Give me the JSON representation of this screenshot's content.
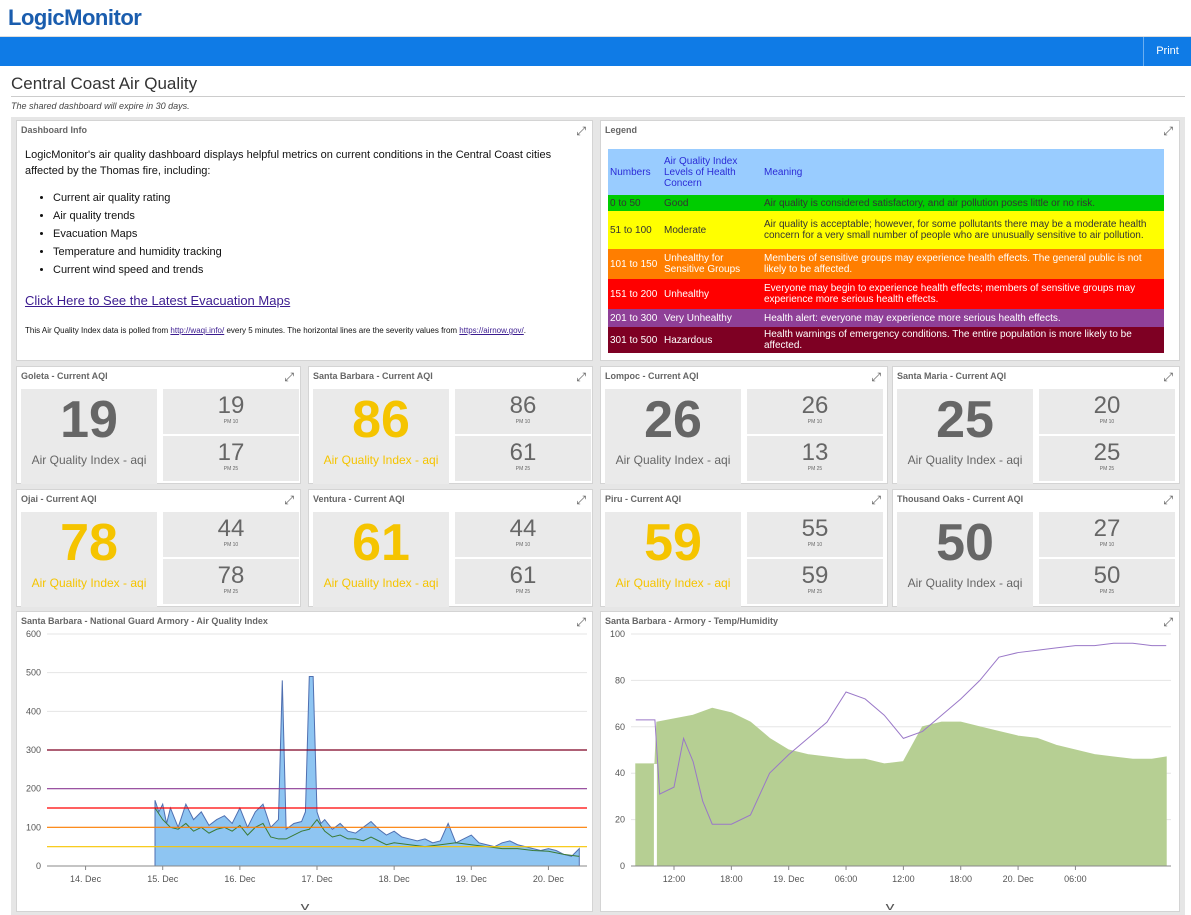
{
  "app": {
    "logo_part1": "Logic",
    "logo_part2": "Monitor",
    "print": "Print"
  },
  "page": {
    "title": "Central Coast Air Quality",
    "subtitle": "The shared dashboard will expire in 30 days."
  },
  "info": {
    "title": "Dashboard Info",
    "intro": "LogicMonitor's air quality dashboard displays helpful metrics on current conditions in the Central Coast cities affected by the Thomas fire, including:",
    "items": [
      "Current air quality rating",
      "Air quality trends",
      "Evacuation Maps",
      "Temperature and humidity tracking",
      "Current wind speed and trends"
    ],
    "link": "Click Here to See the Latest Evacuation Maps",
    "note1": "This Air Quality Index data is polled from ",
    "link1": "http://waqi.info/",
    "note2": " every 5 minutes.  The horizontal lines are the severity values from ",
    "link2": "https://airnow.gov/",
    "note3": "."
  },
  "legend": {
    "title": "Legend",
    "header": [
      "Numbers",
      "Air Quality Index Levels of Health Concern",
      "Meaning"
    ],
    "rows": [
      {
        "n": "0 to 50",
        "level": "Good",
        "meaning": "Air quality is considered satisfactory, and air pollution poses little or no risk.",
        "bg": "#00cc00",
        "fg": "#333333"
      },
      {
        "n": "51 to 100",
        "level": "Moderate",
        "meaning": "Air quality is acceptable; however, for some pollutants there may be a moderate health concern for a very small number of people who are unusually sensitive to air pollution.",
        "bg": "#ffff00",
        "fg": "#333333"
      },
      {
        "n": "101 to 150",
        "level": "Unhealthy for Sensitive Groups",
        "meaning": "Members of sensitive groups may experience health effects. The general public is not likely to be affected.",
        "bg": "#ff7e00",
        "fg": "#ffffff"
      },
      {
        "n": "151 to 200",
        "level": "Unhealthy",
        "meaning": "Everyone may begin to experience health effects; members of sensitive groups may experience more serious health effects.",
        "bg": "#ff0000",
        "fg": "#ffffff"
      },
      {
        "n": "201 to 300",
        "level": "Very Unhealthy",
        "meaning": "Health alert: everyone may experience more serious health effects.",
        "bg": "#8f3f97",
        "fg": "#ffffff"
      },
      {
        "n": "301 to 500",
        "level": "Hazardous",
        "meaning": "Health warnings of emergency conditions. The entire population is more likely to be affected.",
        "bg": "#7e0023",
        "fg": "#ffffff"
      }
    ]
  },
  "aqi_label": "Air Quality Index - aqi",
  "pm10": "PM 10",
  "pm25": "PM 25",
  "stations": [
    {
      "title": "Goleta - Current AQI",
      "aqi": "19",
      "pm10": "19",
      "pm25": "17",
      "color": "gray"
    },
    {
      "title": "Santa Barbara - Current AQI",
      "aqi": "86",
      "pm10": "86",
      "pm25": "61",
      "color": "yellow"
    },
    {
      "title": "Lompoc - Current AQI",
      "aqi": "26",
      "pm10": "26",
      "pm25": "13",
      "color": "gray"
    },
    {
      "title": "Santa Maria - Current AQI",
      "aqi": "25",
      "pm10": "20",
      "pm25": "25",
      "color": "gray"
    },
    {
      "title": "Ojai - Current AQI",
      "aqi": "78",
      "pm10": "44",
      "pm25": "78",
      "color": "yellow"
    },
    {
      "title": "Ventura - Current AQI",
      "aqi": "61",
      "pm10": "44",
      "pm25": "61",
      "color": "yellow"
    },
    {
      "title": "Piru - Current AQI",
      "aqi": "59",
      "pm10": "55",
      "pm25": "59",
      "color": "yellow"
    },
    {
      "title": "Thousand Oaks - Current AQI",
      "aqi": "50",
      "pm10": "27",
      "pm25": "50",
      "color": "gray"
    }
  ],
  "chart_data": [
    {
      "type": "area",
      "title": "Santa Barbara - National Guard Armory - Air Quality Index",
      "ylim": [
        0,
        600
      ],
      "yticks": [
        0,
        100,
        200,
        300,
        400,
        500,
        600
      ],
      "xticks": [
        "14. Dec",
        "15. Dec",
        "16. Dec",
        "17. Dec",
        "18. Dec",
        "19. Dec",
        "20. Dec"
      ],
      "thresholds": [
        {
          "value": 50,
          "color": "#f7c500"
        },
        {
          "value": 100,
          "color": "#ff7e00"
        },
        {
          "value": 150,
          "color": "#ff0000"
        },
        {
          "value": 200,
          "color": "#8f3f97"
        },
        {
          "value": 300,
          "color": "#7e0023"
        }
      ],
      "series": [
        {
          "fill": "#8ec5f2",
          "stroke": "#4f6fb0",
          "x": [
            14.9,
            14.95,
            15.0,
            15.05,
            15.1,
            15.2,
            15.3,
            15.4,
            15.5,
            15.6,
            15.7,
            15.8,
            15.9,
            16.0,
            16.1,
            16.2,
            16.3,
            16.4,
            16.5,
            16.55,
            16.6,
            16.7,
            16.8,
            16.85,
            16.9,
            16.95,
            17.0,
            17.05,
            17.1,
            17.2,
            17.3,
            17.4,
            17.5,
            17.6,
            17.7,
            17.8,
            17.9,
            18.0,
            18.1,
            18.2,
            18.3,
            18.4,
            18.5,
            18.6,
            18.7,
            18.8,
            18.9,
            19.0,
            19.1,
            19.2,
            19.3,
            19.4,
            19.5,
            19.6,
            19.7,
            19.8,
            19.9,
            20.0,
            20.1,
            20.2,
            20.3,
            20.4
          ],
          "values": [
            170,
            140,
            160,
            110,
            150,
            100,
            160,
            120,
            140,
            105,
            120,
            130,
            110,
            150,
            100,
            140,
            160,
            100,
            120,
            480,
            95,
            110,
            115,
            140,
            490,
            490,
            140,
            110,
            120,
            95,
            110,
            90,
            85,
            100,
            115,
            95,
            80,
            90,
            75,
            70,
            65,
            70,
            60,
            65,
            110,
            60,
            70,
            80,
            60,
            55,
            50,
            60,
            65,
            55,
            50,
            45,
            40,
            45,
            40,
            30,
            25,
            45
          ]
        },
        {
          "fill": "none",
          "stroke": "#3a7a35",
          "x": [
            14.9,
            15.0,
            15.1,
            15.2,
            15.3,
            15.4,
            15.5,
            15.6,
            15.7,
            15.8,
            15.9,
            16.0,
            16.1,
            16.2,
            16.3,
            16.4,
            16.5,
            16.6,
            16.7,
            16.8,
            16.9,
            17.0,
            17.1,
            17.2,
            17.3,
            17.4,
            17.5,
            17.6,
            17.7,
            17.8,
            17.9,
            18.0,
            18.2,
            18.4,
            18.6,
            18.8,
            19.0,
            19.2,
            19.4,
            19.6,
            19.8,
            20.0,
            20.2,
            20.4
          ],
          "values": [
            150,
            120,
            100,
            95,
            110,
            90,
            100,
            85,
            95,
            100,
            90,
            105,
            80,
            100,
            110,
            75,
            70,
            70,
            80,
            90,
            95,
            120,
            90,
            75,
            80,
            70,
            70,
            65,
            75,
            65,
            55,
            60,
            55,
            50,
            55,
            60,
            55,
            50,
            45,
            45,
            40,
            38,
            30,
            25
          ]
        }
      ]
    },
    {
      "type": "area",
      "title": "Santa Barbara - Armory - Temp/Humidity",
      "ylim": [
        0,
        100
      ],
      "yticks": [
        0,
        20,
        40,
        60,
        80,
        100
      ],
      "xticks": [
        "12:00",
        "18:00",
        "19. Dec",
        "06:00",
        "12:00",
        "18:00",
        "20. Dec",
        "06:00"
      ],
      "series": [
        {
          "name": "",
          "fill": "#b6cf93",
          "stroke": "#b6cf93",
          "x": [
            8,
            10,
            10.2,
            14,
            16,
            18,
            20,
            22,
            24,
            26,
            28,
            30,
            32,
            34,
            36,
            38,
            40,
            42,
            44,
            46,
            48,
            50,
            52,
            54,
            56,
            58,
            60,
            62,
            63.5
          ],
          "values": [
            44,
            44,
            62,
            65,
            68,
            66,
            62,
            55,
            50,
            48,
            47,
            46,
            46,
            44,
            45,
            60,
            62,
            62,
            60,
            58,
            56,
            55,
            52,
            50,
            48,
            47,
            46,
            46,
            47
          ]
        },
        {
          "name": "",
          "fill": "none",
          "stroke": "#9a78c8",
          "x": [
            8,
            10,
            10.5,
            12,
            13,
            14,
            15,
            16,
            18,
            20,
            22,
            24,
            26,
            28,
            30,
            32,
            34,
            36,
            38,
            40,
            42,
            44,
            46,
            48,
            50,
            52,
            54,
            56,
            58,
            60,
            62,
            63.5
          ],
          "values": [
            63,
            63,
            31,
            34,
            55,
            45,
            28,
            18,
            18,
            22,
            40,
            48,
            55,
            62,
            75,
            72,
            65,
            55,
            58,
            65,
            72,
            80,
            90,
            92,
            93,
            94,
            95,
            95,
            96,
            96,
            95,
            95
          ]
        }
      ]
    }
  ]
}
